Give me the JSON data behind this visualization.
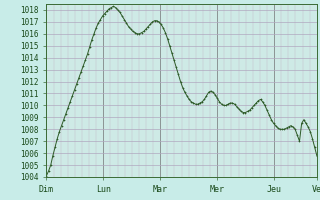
{
  "bg_color": "#c8ece8",
  "plot_bg_color": "#ceeae6",
  "line_color": "#2d5a27",
  "marker_color": "#2d5a27",
  "grid_color_minor": "#c0b8c8",
  "grid_color_major": "#b0a8c0",
  "ylim": [
    1004,
    1018.5
  ],
  "yticks": [
    1004,
    1005,
    1006,
    1007,
    1008,
    1009,
    1010,
    1011,
    1012,
    1013,
    1014,
    1015,
    1016,
    1017,
    1018
  ],
  "xlabel_days": [
    "Dim",
    "Lun",
    "Mar",
    "Mer",
    "Jeu",
    "Ve"
  ],
  "day_positions": [
    0,
    1,
    2,
    3,
    4,
    4.7
  ],
  "pressure_values": [
    1004.1,
    1004.5,
    1005.0,
    1005.8,
    1006.5,
    1007.2,
    1007.8,
    1008.3,
    1008.8,
    1009.3,
    1009.8,
    1010.3,
    1010.8,
    1011.3,
    1011.8,
    1012.3,
    1012.8,
    1013.3,
    1013.8,
    1014.3,
    1014.9,
    1015.5,
    1016.0,
    1016.5,
    1016.9,
    1017.2,
    1017.5,
    1017.7,
    1017.9,
    1018.1,
    1018.2,
    1018.3,
    1018.2,
    1018.0,
    1017.8,
    1017.5,
    1017.2,
    1016.9,
    1016.6,
    1016.4,
    1016.2,
    1016.1,
    1016.0,
    1016.0,
    1016.1,
    1016.2,
    1016.4,
    1016.6,
    1016.8,
    1017.0,
    1017.1,
    1017.1,
    1017.0,
    1016.8,
    1016.5,
    1016.1,
    1015.6,
    1015.0,
    1014.4,
    1013.8,
    1013.2,
    1012.6,
    1012.0,
    1011.5,
    1011.1,
    1010.8,
    1010.5,
    1010.3,
    1010.2,
    1010.1,
    1010.1,
    1010.2,
    1010.3,
    1010.5,
    1010.8,
    1011.1,
    1011.2,
    1011.1,
    1010.9,
    1010.6,
    1010.3,
    1010.1,
    1010.0,
    1010.0,
    1010.1,
    1010.2,
    1010.2,
    1010.1,
    1009.9,
    1009.7,
    1009.5,
    1009.4,
    1009.4,
    1009.5,
    1009.6,
    1009.8,
    1010.0,
    1010.2,
    1010.4,
    1010.5,
    1010.3,
    1010.0,
    1009.6,
    1009.2,
    1008.8,
    1008.5,
    1008.3,
    1008.1,
    1008.0,
    1008.0,
    1008.0,
    1008.1,
    1008.2,
    1008.3,
    1008.2,
    1008.0,
    1007.5,
    1007.0,
    1008.5,
    1008.8,
    1008.5,
    1008.2,
    1007.8,
    1007.2,
    1006.5,
    1005.8
  ]
}
